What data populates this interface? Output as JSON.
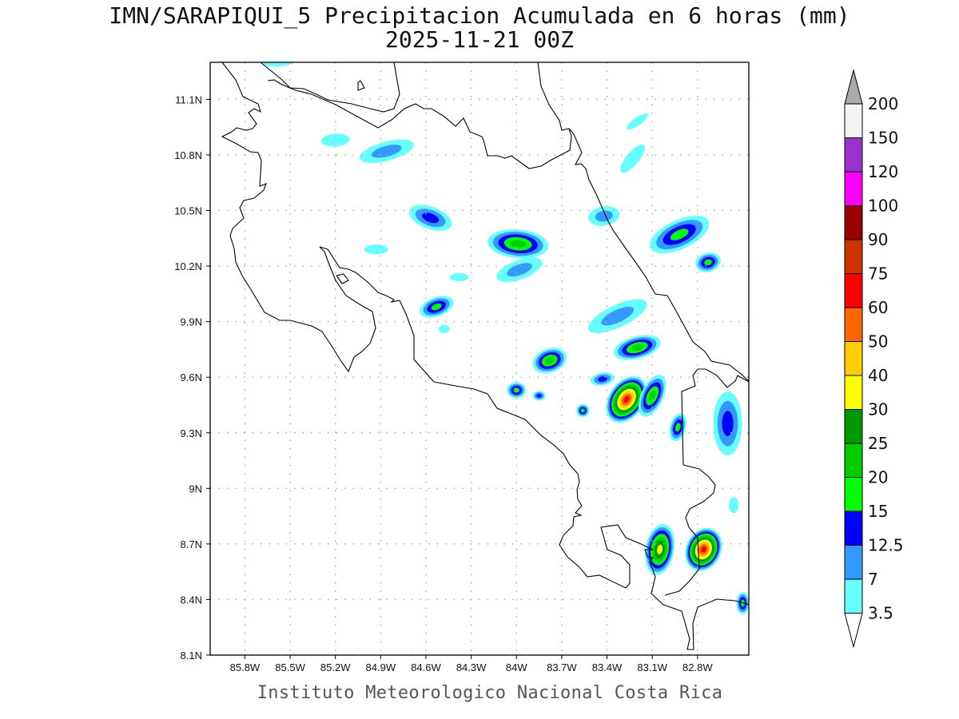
{
  "header": {
    "title": "IMN/SARAPIQUI_5 Precipitacion Acumulada en 6 horas (mm)",
    "subtitle": "2025-11-21 00Z"
  },
  "footer": "Instituto Meteorologico Nacional Costa Rica",
  "map": {
    "lon_ticks": [
      "85.8W",
      "85.5W",
      "85.2W",
      "84.9W",
      "84.6W",
      "84.3W",
      "84W",
      "83.7W",
      "83.4W",
      "83.1W",
      "82.8W"
    ],
    "lat_ticks": [
      "8.1N",
      "8.4N",
      "8.7N",
      "9N",
      "9.3N",
      "9.6N",
      "9.9N",
      "10.2N",
      "10.5N",
      "10.8N",
      "11.1N"
    ],
    "lon_range_w": [
      86.03,
      82.46
    ],
    "lat_range_n": [
      8.1,
      11.3
    ]
  },
  "colorbar": {
    "labels": [
      "3.5",
      "7",
      "12.5",
      "15",
      "20",
      "25",
      "30",
      "40",
      "50",
      "60",
      "75",
      "90",
      "100",
      "120",
      "150",
      "200"
    ],
    "colors": [
      "#66ffff",
      "#3399ff",
      "#0000ff",
      "#00ff00",
      "#00cc00",
      "#009900",
      "#ffff00",
      "#ffcc00",
      "#ff6600",
      "#ff0000",
      "#cc3300",
      "#990000",
      "#ff00ff",
      "#9933cc",
      "#f3f3f3"
    ],
    "over_color": "#aaaaaa",
    "under_color": "#ffffff"
  },
  "precip_cells": [
    {
      "lon": 84.86,
      "lat": 10.82,
      "peak": 10
    },
    {
      "lon": 85.2,
      "lat": 10.88,
      "peak": 5
    },
    {
      "lon": 84.57,
      "lat": 10.46,
      "peak": 13
    },
    {
      "lon": 83.99,
      "lat": 10.32,
      "peak": 25
    },
    {
      "lon": 83.98,
      "lat": 10.18,
      "peak": 8
    },
    {
      "lon": 84.53,
      "lat": 9.98,
      "peak": 20
    },
    {
      "lon": 83.78,
      "lat": 9.69,
      "peak": 25
    },
    {
      "lon": 84.0,
      "lat": 9.53,
      "peak": 20
    },
    {
      "lon": 83.85,
      "lat": 9.5,
      "peak": 15
    },
    {
      "lon": 83.43,
      "lat": 9.59,
      "peak": 13
    },
    {
      "lon": 83.27,
      "lat": 9.48,
      "peak": 75
    },
    {
      "lon": 83.1,
      "lat": 9.5,
      "peak": 25
    },
    {
      "lon": 83.2,
      "lat": 9.76,
      "peak": 25
    },
    {
      "lon": 83.33,
      "lat": 9.93,
      "peak": 10
    },
    {
      "lon": 83.56,
      "lat": 9.42,
      "peak": 20
    },
    {
      "lon": 82.93,
      "lat": 9.33,
      "peak": 20
    },
    {
      "lon": 82.6,
      "lat": 9.35,
      "peak": 15
    },
    {
      "lon": 83.05,
      "lat": 8.67,
      "peak": 40
    },
    {
      "lon": 82.76,
      "lat": 8.67,
      "peak": 75
    },
    {
      "lon": 82.92,
      "lat": 10.37,
      "peak": 20
    },
    {
      "lon": 82.73,
      "lat": 10.22,
      "peak": 20
    },
    {
      "lon": 83.42,
      "lat": 10.47,
      "peak": 8
    },
    {
      "lon": 83.23,
      "lat": 10.78,
      "peak": 7
    },
    {
      "lon": 83.2,
      "lat": 10.98,
      "peak": 5
    },
    {
      "lon": 84.93,
      "lat": 10.29,
      "peak": 7
    },
    {
      "lon": 82.5,
      "lat": 8.38,
      "peak": 20
    },
    {
      "lon": 82.56,
      "lat": 8.91,
      "peak": 5
    },
    {
      "lon": 85.57,
      "lat": 11.3,
      "peak": 5
    },
    {
      "lon": 84.38,
      "lat": 10.14,
      "peak": 5
    },
    {
      "lon": 84.48,
      "lat": 9.86,
      "peak": 7
    }
  ]
}
